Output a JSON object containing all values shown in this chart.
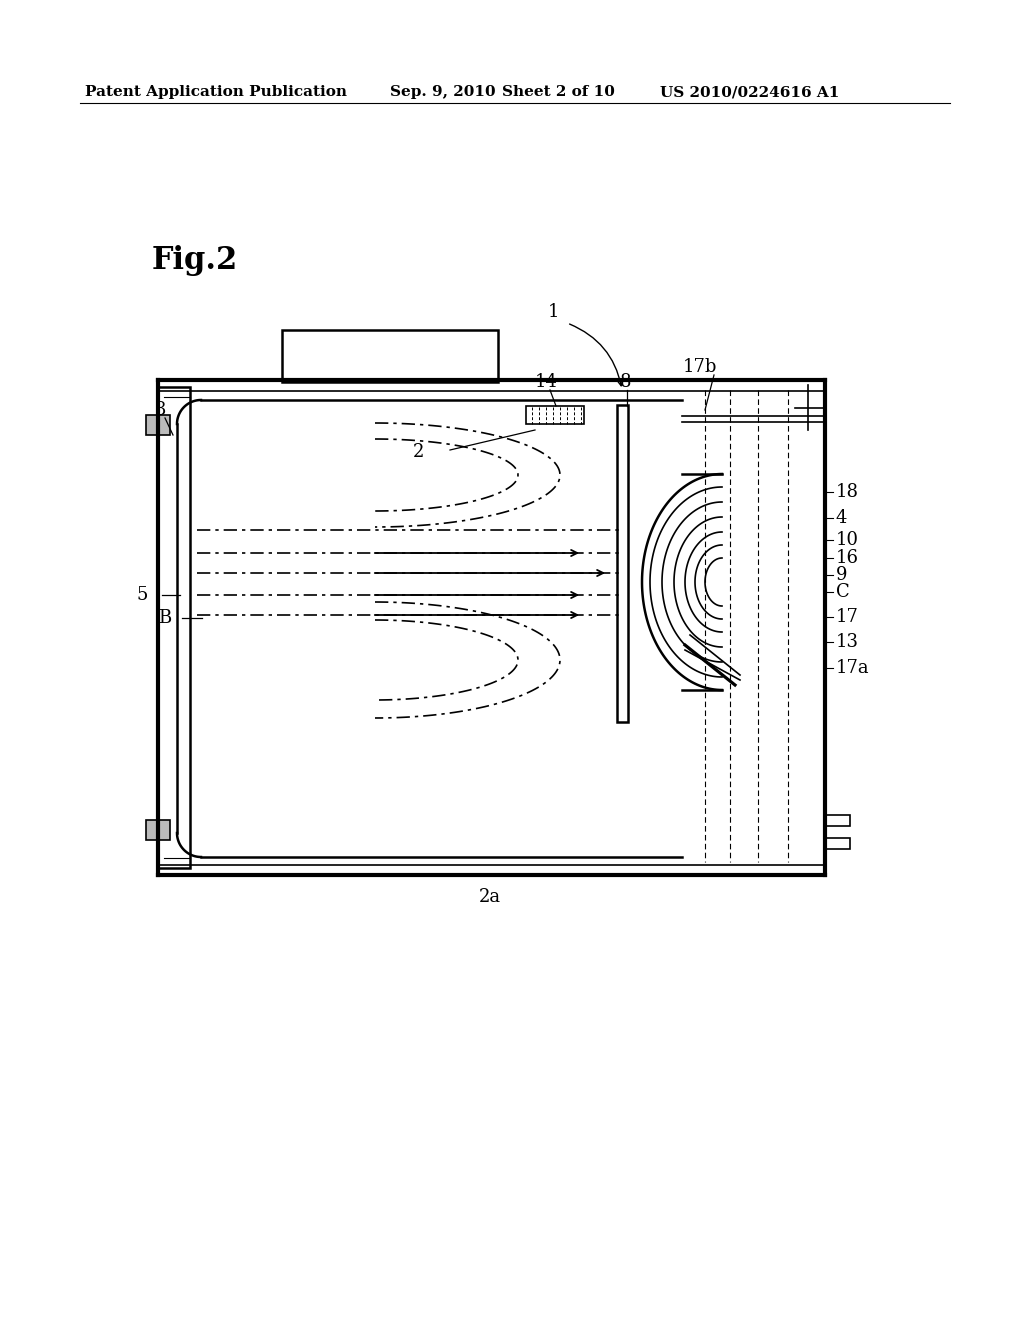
{
  "bg_color": "#ffffff",
  "header1": "Patent Application Publication",
  "header2": "Sep. 9, 2010",
  "header3": "Sheet 2 of 10",
  "header4": "US 2010/0224616 A1",
  "fig_label": "Fig.2",
  "right_labels": [
    [
      "18",
      835,
      492
    ],
    [
      "4",
      835,
      518
    ],
    [
      "10",
      835,
      540
    ],
    [
      "16",
      835,
      558
    ],
    [
      "9",
      835,
      575
    ],
    [
      "C",
      835,
      592
    ],
    [
      "17",
      835,
      617
    ],
    [
      "13",
      835,
      642
    ],
    [
      "17a",
      835,
      668
    ]
  ]
}
